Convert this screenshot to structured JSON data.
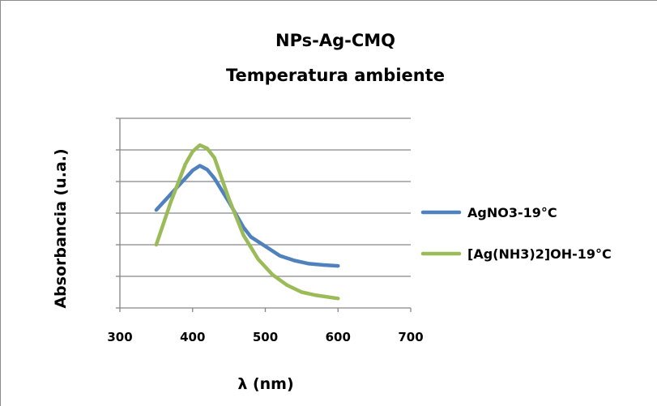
{
  "chart_data": {
    "type": "line",
    "title": [
      "NPs-Ag-CMQ",
      "Temperatura ambiente"
    ],
    "xlabel": "λ (nm)",
    "ylabel": "Absorbancia  (u.a.)",
    "xlim": [
      300,
      700
    ],
    "xticks": [
      "300",
      "400",
      "500",
      "600",
      "700"
    ],
    "ylim": [
      0,
      6
    ],
    "y_tick_labels_shown": false,
    "grid": "horizontal",
    "legend_position": "right",
    "series": [
      {
        "name": "AgNO3-19°C",
        "color": "#4f81bd",
        "x": [
          350,
          380,
          400,
          410,
          420,
          430,
          450,
          470,
          480,
          500,
          520,
          540,
          560,
          580,
          600
        ],
        "y": [
          3.1,
          3.85,
          4.35,
          4.5,
          4.38,
          4.1,
          3.35,
          2.55,
          2.25,
          1.95,
          1.65,
          1.5,
          1.4,
          1.36,
          1.33
        ]
      },
      {
        "name": "[Ag(NH3)2]OH-19°C",
        "color": "#9bbb59",
        "x": [
          350,
          370,
          390,
          400,
          410,
          420,
          430,
          450,
          470,
          490,
          510,
          530,
          550,
          570,
          600
        ],
        "y": [
          2.0,
          3.35,
          4.55,
          4.95,
          5.15,
          5.05,
          4.75,
          3.45,
          2.3,
          1.55,
          1.05,
          0.72,
          0.5,
          0.4,
          0.3
        ]
      }
    ]
  }
}
